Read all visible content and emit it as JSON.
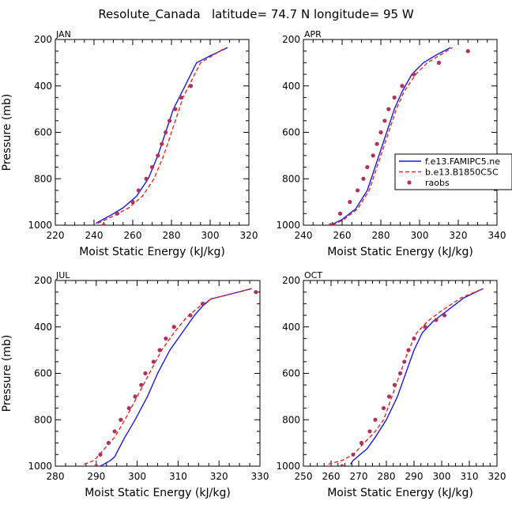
{
  "title": "Resolute_Canada   latitude= 74.7 N longitude= 95 W",
  "colors": {
    "model1": "#1a1adc",
    "model2": "#e8281e",
    "obs": "#b03060",
    "axis": "#000000"
  },
  "chart_data": [
    {
      "type": "line",
      "panel": "JAN",
      "xlabel": "Moist Static Energy (kJ/kg)",
      "ylabel": "Pressure (mb)",
      "xlim": [
        220,
        320
      ],
      "ylim": [
        1000,
        200
      ],
      "xticks": [
        220,
        240,
        260,
        280,
        300,
        320
      ],
      "yticks": [
        200,
        400,
        600,
        800,
        1000
      ],
      "series": [
        {
          "name": "f.e13.FAMIPC5.ne",
          "style": "solid",
          "points": [
            [
              241,
              992
            ],
            [
              248,
              960
            ],
            [
              255,
              925
            ],
            [
              262,
              875
            ],
            [
              268,
              800
            ],
            [
              273,
              700
            ],
            [
              277,
              600
            ],
            [
              281,
              500
            ],
            [
              284,
              450
            ],
            [
              287,
              400
            ],
            [
              290,
              350
            ],
            [
              293,
              300
            ],
            [
              300,
              270
            ],
            [
              309,
              235
            ]
          ]
        },
        {
          "name": "b.e13.B1850C5C",
          "style": "dashed",
          "points": [
            [
              242,
              992
            ],
            [
              250,
              960
            ],
            [
              258,
              925
            ],
            [
              265,
              875
            ],
            [
              271,
              800
            ],
            [
              276,
              700
            ],
            [
              280,
              600
            ],
            [
              284,
              500
            ],
            [
              286,
              450
            ],
            [
              289,
              400
            ],
            [
              292,
              350
            ],
            [
              295,
              300
            ],
            [
              302,
              265
            ],
            [
              308,
              235
            ]
          ]
        },
        {
          "name": "raobs",
          "style": "dots",
          "points": [
            [
              245,
              1000
            ],
            [
              252,
              950
            ],
            [
              260,
              900
            ],
            [
              263,
              850
            ],
            [
              267,
              800
            ],
            [
              270,
              750
            ],
            [
              273,
              700
            ],
            [
              275,
              650
            ],
            [
              277,
              600
            ],
            [
              279,
              550
            ],
            [
              282,
              500
            ],
            [
              285,
              450
            ],
            [
              290,
              400
            ]
          ]
        }
      ]
    },
    {
      "type": "line",
      "panel": "APR",
      "xlabel": "Moist Static Energy (kJ/kg)",
      "ylabel": "",
      "xlim": [
        240,
        340
      ],
      "ylim": [
        1000,
        200
      ],
      "xticks": [
        240,
        260,
        280,
        300,
        320,
        340
      ],
      "yticks": [
        200,
        400,
        600,
        800,
        1000
      ],
      "legend": "right",
      "series": [
        {
          "name": "f.e13.FAMIPC5.ne",
          "style": "solid",
          "points": [
            [
              254,
              1000
            ],
            [
              260,
              975
            ],
            [
              267,
              930
            ],
            [
              273,
              850
            ],
            [
              279,
              700
            ],
            [
              283,
              600
            ],
            [
              287,
              500
            ],
            [
              291,
              425
            ],
            [
              296,
              350
            ],
            [
              302,
              300
            ],
            [
              309,
              265
            ],
            [
              316,
              235
            ]
          ]
        },
        {
          "name": "b.e13.B1850C5C",
          "style": "dashed",
          "points": [
            [
              255,
              1000
            ],
            [
              261,
              975
            ],
            [
              268,
              930
            ],
            [
              274,
              850
            ],
            [
              280,
              700
            ],
            [
              284,
              600
            ],
            [
              288,
              500
            ],
            [
              292,
              425
            ],
            [
              298,
              350
            ],
            [
              304,
              300
            ],
            [
              311,
              265
            ],
            [
              317,
              235
            ]
          ]
        },
        {
          "name": "raobs",
          "style": "dots",
          "points": [
            [
              254,
              1000
            ],
            [
              259,
              950
            ],
            [
              264,
              900
            ],
            [
              268,
              850
            ],
            [
              271,
              800
            ],
            [
              273,
              750
            ],
            [
              276,
              700
            ],
            [
              278,
              650
            ],
            [
              280,
              600
            ],
            [
              282,
              550
            ],
            [
              284,
              500
            ],
            [
              287,
              450
            ],
            [
              291,
              400
            ],
            [
              297,
              350
            ],
            [
              310,
              300
            ],
            [
              325,
              250
            ]
          ]
        }
      ]
    },
    {
      "type": "line",
      "panel": "JUL",
      "xlabel": "Moist Static Energy (kJ/kg)",
      "ylabel": "Pressure (mb)",
      "xlim": [
        280,
        330
      ],
      "ylim": [
        1000,
        200
      ],
      "xticks": [
        280,
        290,
        300,
        310,
        320,
        330
      ],
      "yticks": [
        200,
        400,
        600,
        800,
        1000
      ],
      "series": [
        {
          "name": "f.e13.FAMIPC5.ne",
          "style": "solid",
          "points": [
            [
              291,
              1000
            ],
            [
              292.5,
              985
            ],
            [
              293.5,
              975
            ],
            [
              294.5,
              960
            ],
            [
              295.5,
              925
            ],
            [
              297,
              875
            ],
            [
              299.5,
              800
            ],
            [
              302.5,
              700
            ],
            [
              305,
              600
            ],
            [
              308,
              500
            ],
            [
              311,
              425
            ],
            [
              314,
              350
            ],
            [
              316,
              310
            ],
            [
              318,
              280
            ],
            [
              328,
              235
            ]
          ]
        },
        {
          "name": "b.e13.B1850C5C",
          "style": "dashed",
          "points": [
            [
              287,
              992
            ],
            [
              289.5,
              975
            ],
            [
              292,
              925
            ],
            [
              294.5,
              875
            ],
            [
              297,
              800
            ],
            [
              300,
              700
            ],
            [
              303,
              600
            ],
            [
              306,
              500
            ],
            [
              309,
              425
            ],
            [
              312,
              360
            ],
            [
              315,
              315
            ],
            [
              318,
              280
            ],
            [
              328,
              235
            ]
          ]
        },
        {
          "name": "raobs",
          "style": "dots",
          "points": [
            [
              290,
              1000
            ],
            [
              291,
              950
            ],
            [
              293,
              900
            ],
            [
              294.5,
              850
            ],
            [
              296,
              800
            ],
            [
              298,
              750
            ],
            [
              299.5,
              700
            ],
            [
              301,
              650
            ],
            [
              302,
              600
            ],
            [
              304,
              550
            ],
            [
              305.5,
              500
            ],
            [
              307,
              450
            ],
            [
              309,
              400
            ],
            [
              313,
              350
            ],
            [
              316,
              300
            ],
            [
              329,
              250
            ]
          ]
        }
      ]
    },
    {
      "type": "line",
      "panel": "OCT",
      "xlabel": "Moist Static Energy (kJ/kg)",
      "ylabel": "",
      "xlim": [
        250,
        320
      ],
      "ylim": [
        1000,
        200
      ],
      "xticks": [
        250,
        260,
        270,
        280,
        290,
        300,
        310,
        320
      ],
      "yticks": [
        200,
        400,
        600,
        800,
        1000
      ],
      "series": [
        {
          "name": "f.e13.FAMIPC5.ne",
          "style": "solid",
          "points": [
            [
              267,
              992
            ],
            [
              268,
              975
            ],
            [
              270,
              955
            ],
            [
              273,
              925
            ],
            [
              276,
              875
            ],
            [
              280,
              800
            ],
            [
              284,
              700
            ],
            [
              287,
              600
            ],
            [
              290,
              500
            ],
            [
              293,
              425
            ],
            [
              297,
              375
            ],
            [
              302,
              330
            ],
            [
              308,
              275
            ],
            [
              315,
              235
            ]
          ]
        },
        {
          "name": "b.e13.B1850C5C",
          "style": "dashed",
          "points": [
            [
              259,
              992
            ],
            [
              264,
              975
            ],
            [
              268,
              950
            ],
            [
              272,
              900
            ],
            [
              276,
              850
            ],
            [
              279,
              800
            ],
            [
              282,
              700
            ],
            [
              285,
              600
            ],
            [
              288,
              500
            ],
            [
              291,
              425
            ],
            [
              295,
              375
            ],
            [
              300,
              330
            ],
            [
              307,
              275
            ],
            [
              315,
              235
            ]
          ]
        },
        {
          "name": "raobs",
          "style": "dots",
          "points": [
            [
              264,
              1000
            ],
            [
              268,
              950
            ],
            [
              271,
              900
            ],
            [
              274,
              850
            ],
            [
              276,
              800
            ],
            [
              279,
              750
            ],
            [
              281,
              700
            ],
            [
              283,
              650
            ],
            [
              285,
              600
            ],
            [
              286.5,
              550
            ],
            [
              288,
              500
            ],
            [
              290,
              450
            ],
            [
              294,
              400
            ],
            [
              298,
              370
            ],
            [
              301,
              350
            ]
          ]
        }
      ]
    }
  ]
}
